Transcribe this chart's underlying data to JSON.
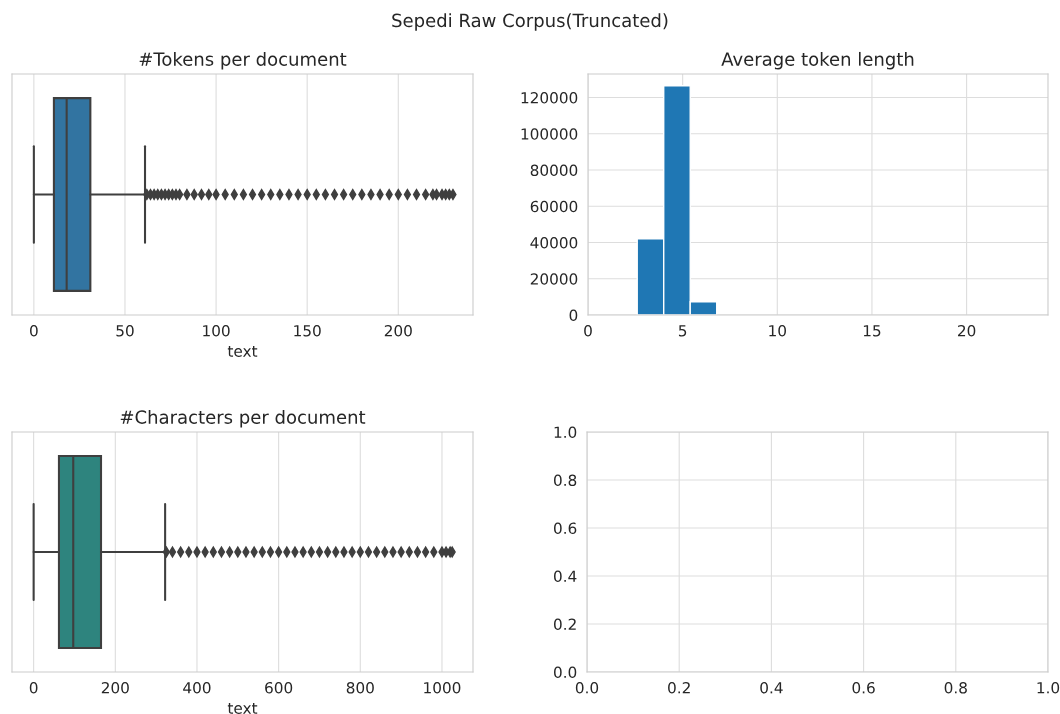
{
  "chart_data": [
    {
      "type": "box",
      "title": "#Tokens per document",
      "annotations": [
        "Sepedi Raw Corpus(Truncated)"
      ],
      "xlabel": "text",
      "orientation": "horizontal",
      "categories": [
        null
      ],
      "color": "#3274a1",
      "grid": "x",
      "marker": "diamond",
      "xlim": [
        -12,
        241
      ],
      "xticks": [
        0,
        50,
        100,
        150,
        200
      ],
      "boxes": [
        {
          "low": 0,
          "q1": 11,
          "median": 18,
          "q3": 31,
          "high": 61,
          "outliers": [
            62,
            64,
            66,
            68,
            70,
            72,
            74,
            76,
            78,
            80,
            84,
            88,
            92,
            96,
            100,
            105,
            110,
            115,
            120,
            125,
            130,
            135,
            140,
            145,
            150,
            155,
            160,
            165,
            170,
            175,
            180,
            185,
            190,
            195,
            200,
            205,
            210,
            215,
            219,
            221,
            224,
            226,
            228,
            230
          ]
        }
      ]
    },
    {
      "type": "histogram",
      "title": "Average token length",
      "color": "#1f77b4",
      "grid": true,
      "bins": [
        2.6,
        4.0,
        5.4,
        6.8
      ],
      "values": [
        42000,
        126500,
        7300
      ],
      "xlim": [
        0,
        24.3
      ],
      "ylim": [
        0,
        133000
      ],
      "xticks": [
        0,
        5,
        10,
        15,
        20
      ],
      "yticks": [
        0,
        20000,
        40000,
        60000,
        80000,
        100000,
        120000
      ]
    },
    {
      "type": "box",
      "title": "#Characters per document",
      "xlabel": "text",
      "orientation": "horizontal",
      "categories": [
        null
      ],
      "color": "#2e847e",
      "grid": "x",
      "marker": "diamond",
      "xlim": [
        -53,
        1076
      ],
      "xticks": [
        0,
        200,
        400,
        600,
        800,
        1000
      ],
      "boxes": [
        {
          "low": 0,
          "q1": 62,
          "median": 97,
          "q3": 165,
          "high": 322,
          "outliers": [
            325,
            340,
            360,
            380,
            400,
            420,
            440,
            460,
            480,
            500,
            520,
            540,
            560,
            580,
            600,
            620,
            640,
            660,
            680,
            700,
            720,
            740,
            760,
            780,
            800,
            820,
            840,
            860,
            880,
            900,
            920,
            940,
            960,
            980,
            1000,
            1010,
            1020,
            1025
          ]
        }
      ]
    },
    {
      "type": "scatter",
      "grid": true,
      "xlim": [
        0,
        1
      ],
      "ylim": [
        0,
        1
      ],
      "xticks": [
        {
          "value": 0,
          "label": "0.0"
        },
        {
          "value": 0.2,
          "label": "0.2"
        },
        {
          "value": 0.4,
          "label": "0.4"
        },
        {
          "value": 0.6,
          "label": "0.6"
        },
        {
          "value": 0.8,
          "label": "0.8"
        },
        {
          "value": 1,
          "label": "1.0"
        }
      ],
      "yticks": [
        {
          "value": 0,
          "label": "0.0"
        },
        {
          "value": 0.2,
          "label": "0.2"
        },
        {
          "value": 0.4,
          "label": "0.4"
        },
        {
          "value": 0.6,
          "label": "0.6"
        },
        {
          "value": 0.8,
          "label": "0.8"
        },
        {
          "value": 1,
          "label": "1.0"
        }
      ]
    }
  ]
}
